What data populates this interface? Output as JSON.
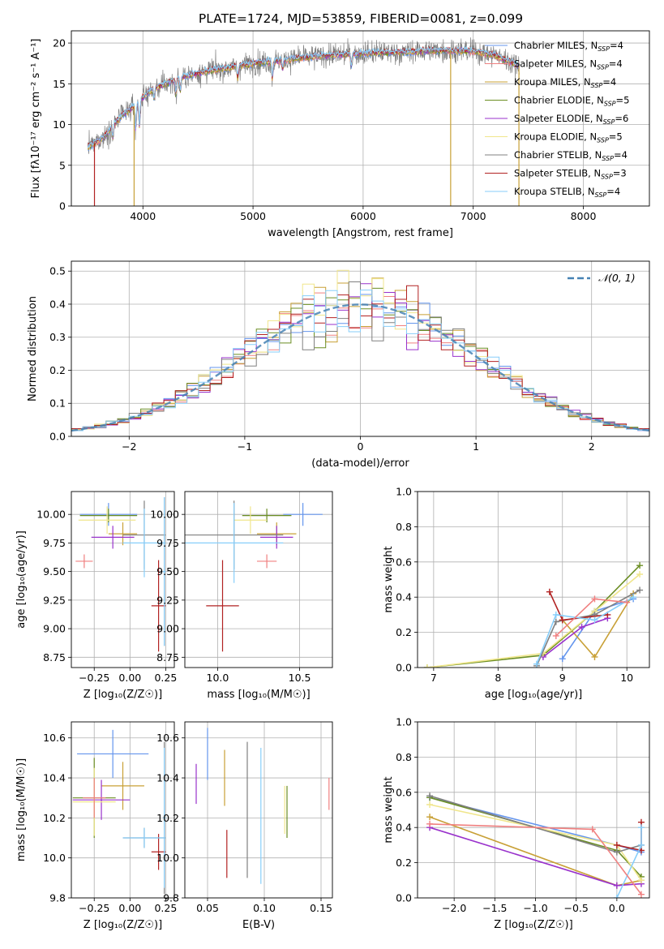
{
  "title": "PLATE=1724, MJD=53859, FIBERID=0081, z=0.099",
  "colors": {
    "chabrier_miles": "#6495ed",
    "salpeter_miles": "#f08080",
    "kroupa_miles": "#c8a036",
    "chabrier_elodie": "#6b8e23",
    "salpeter_elodie": "#9932cc",
    "kroupa_elodie": "#f0e68c",
    "chabrier_stelib": "#808080",
    "salpeter_stelib": "#b22222",
    "kroupa_stelib": "#87cefa",
    "data": "#808080",
    "normal": "#4682b4"
  },
  "chart_data": [
    {
      "id": "spectrum",
      "type": "line",
      "xlabel": "wavelength [Angstrom, rest frame]",
      "ylabel": "Flux [fλ10⁻¹⁷ erg cm⁻² s⁻¹ A⁻¹]",
      "xlim": [
        3350,
        8600
      ],
      "ylim": [
        0,
        21.5
      ],
      "xticks": [
        4000,
        5000,
        6000,
        7000,
        8000
      ],
      "yticks": [
        0,
        5,
        10,
        15,
        20
      ],
      "legend": [
        {
          "label": "Chabrier MILES, N",
          "sub": "SSP",
          "val": "=4",
          "color": "chabrier_miles"
        },
        {
          "label": "Salpeter MILES, N",
          "sub": "SSP",
          "val": "=4",
          "color": "salpeter_miles"
        },
        {
          "label": "Kroupa MILES, N",
          "sub": "SSP",
          "val": "=4",
          "color": "kroupa_miles"
        },
        {
          "label": "Chabrier ELODIE, N",
          "sub": "SSP",
          "val": "=5",
          "color": "chabrier_elodie"
        },
        {
          "label": "Salpeter ELODIE, N",
          "sub": "SSP",
          "val": "=6",
          "color": "salpeter_elodie"
        },
        {
          "label": "Kroupa ELODIE, N",
          "sub": "SSP",
          "val": "=5",
          "color": "kroupa_elodie"
        },
        {
          "label": "Chabrier STELIB, N",
          "sub": "SSP",
          "val": "=4",
          "color": "chabrier_stelib"
        },
        {
          "label": "Salpeter STELIB, N",
          "sub": "SSP",
          "val": "=3",
          "color": "salpeter_stelib"
        },
        {
          "label": "Kroupa STELIB, N",
          "sub": "SSP",
          "val": "=4",
          "color": "kroupa_stelib"
        }
      ],
      "continuum": {
        "x": [
          3500,
          3650,
          3800,
          3950,
          4050,
          4200,
          4400,
          4600,
          4800,
          5000,
          5200,
          5500,
          5800,
          6100,
          6400,
          6700,
          7000,
          7200,
          7400
        ],
        "y": [
          7.2,
          8.5,
          11.0,
          12.6,
          14.0,
          15.0,
          16.0,
          16.6,
          17.0,
          17.5,
          17.8,
          18.3,
          18.6,
          18.8,
          18.9,
          19.1,
          19.0,
          18.5,
          17.3
        ]
      },
      "drops": [
        {
          "x": 3560,
          "color": "salpeter_stelib"
        },
        {
          "x": 3920,
          "color": "kroupa_miles"
        },
        {
          "x": 6795,
          "color": "kroupa_miles"
        },
        {
          "x": 7415,
          "color": "kroupa_miles"
        }
      ]
    },
    {
      "id": "residuals",
      "type": "histogram",
      "xlabel": "(data-model)/error",
      "ylabel": "Normed distribution",
      "xlim": [
        -2.5,
        2.5
      ],
      "ylim": [
        0,
        0.53
      ],
      "xticks": [
        -2,
        -1,
        0,
        1,
        2
      ],
      "yticks": [
        0.0,
        0.1,
        0.2,
        0.3,
        0.4,
        0.5
      ],
      "legend": "𝒩(0, 1)",
      "bin_width": 0.1,
      "bin_start": -2.6
    },
    {
      "id": "age_vs_Z",
      "type": "errorbar",
      "xlabel": "Z [log₁₀(Z/Z☉)]",
      "ylabel": "age  [log₁₀(age/yr)]",
      "xlim": [
        -0.41,
        0.31
      ],
      "ylim": [
        8.66,
        10.2
      ],
      "xticks": [
        -0.25,
        0.0,
        0.25
      ],
      "yticks": [
        8.75,
        9.0,
        9.25,
        9.5,
        9.75,
        10.0
      ],
      "points": [
        {
          "color": "chabrier_miles",
          "x": -0.15,
          "xerr": 0.2,
          "y": 10.0,
          "yerr": 0.1
        },
        {
          "color": "kroupa_miles",
          "x": -0.05,
          "xerr": 0.1,
          "y": 9.83,
          "yerr": 0.1
        },
        {
          "color": "chabrier_elodie",
          "x": -0.15,
          "xerr": 0.2,
          "y": 9.99,
          "yerr": 0.06
        },
        {
          "color": "salpeter_elodie",
          "x": -0.12,
          "xerr": 0.15,
          "y": 9.8,
          "yerr": 0.1
        },
        {
          "color": "kroupa_elodie",
          "x": -0.16,
          "xerr": 0.2,
          "y": 9.95,
          "yerr": 0.12
        },
        {
          "color": "chabrier_stelib",
          "x": 0.1,
          "xerr": 0.15,
          "y": 9.82,
          "yerr": 0.3
        },
        {
          "color": "salpeter_stelib",
          "x": 0.2,
          "xerr": 0.05,
          "y": 9.2,
          "yerr": 0.4
        },
        {
          "color": "kroupa_stelib",
          "x": 0.1,
          "xerr": 0.15,
          "y": 9.75,
          "yerr": 0.3
        },
        {
          "color": "salpeter_miles",
          "x": -0.32,
          "xerr": 0.06,
          "y": 9.59,
          "yerr": 0.06
        },
        {
          "color": "chabrier_stelib",
          "x": 0.24,
          "xerr": 0.01,
          "y": 9.5,
          "yerr": 0.65
        },
        {
          "color": "kroupa_stelib",
          "x": 0.24,
          "xerr": 0.01,
          "y": 9.5,
          "yerr": 0.65
        }
      ]
    },
    {
      "id": "age_vs_mass",
      "type": "errorbar",
      "xlabel": "mass [log₁₀(M/M☉)]",
      "ylabel": "",
      "xlim": [
        9.8,
        10.7
      ],
      "ylim": [
        8.66,
        10.2
      ],
      "xticks": [
        10.0,
        10.5
      ],
      "yticks": [
        8.75,
        9.0,
        9.25,
        9.5,
        9.75,
        10.0
      ],
      "points": [
        {
          "color": "chabrier_miles",
          "x": 10.52,
          "xerr": 0.12,
          "y": 10.0,
          "yerr": 0.1
        },
        {
          "color": "kroupa_miles",
          "x": 10.36,
          "xerr": 0.12,
          "y": 9.83,
          "yerr": 0.1
        },
        {
          "color": "chabrier_elodie",
          "x": 10.3,
          "xerr": 0.15,
          "y": 9.99,
          "yerr": 0.06
        },
        {
          "color": "salpeter_elodie",
          "x": 10.36,
          "xerr": 0.1,
          "y": 9.8,
          "yerr": 0.1
        },
        {
          "color": "kroupa_elodie",
          "x": 10.2,
          "xerr": 0.1,
          "y": 9.95,
          "yerr": 0.12
        },
        {
          "color": "chabrier_stelib",
          "x": 10.1,
          "xerr": 0.3,
          "y": 9.82,
          "yerr": 0.3
        },
        {
          "color": "salpeter_stelib",
          "x": 10.03,
          "xerr": 0.1,
          "y": 9.2,
          "yerr": 0.4
        },
        {
          "color": "kroupa_stelib",
          "x": 10.1,
          "xerr": 0.3,
          "y": 9.75,
          "yerr": 0.35
        },
        {
          "color": "salpeter_miles",
          "x": 10.3,
          "xerr": 0.06,
          "y": 9.59,
          "yerr": 0.06
        }
      ]
    },
    {
      "id": "mass_vs_Z",
      "type": "errorbar",
      "xlabel": "Z [log₁₀(Z/Z☉)]",
      "ylabel": "mass [log₁₀(M/M☉)]",
      "xlim": [
        -0.41,
        0.31
      ],
      "ylim": [
        9.8,
        10.68
      ],
      "xticks": [
        -0.25,
        0.0,
        0.25
      ],
      "yticks": [
        9.8,
        10.0,
        10.2,
        10.4,
        10.6
      ],
      "points": [
        {
          "color": "chabrier_miles",
          "x": -0.12,
          "xerr": 0.25,
          "y": 10.52,
          "yerr": 0.12
        },
        {
          "color": "kroupa_miles",
          "x": -0.05,
          "xerr": 0.15,
          "y": 10.36,
          "yerr": 0.12
        },
        {
          "color": "chabrier_elodie",
          "x": -0.25,
          "xerr": 0.15,
          "y": 10.3,
          "yerr": 0.2
        },
        {
          "color": "salpeter_elodie",
          "x": -0.2,
          "xerr": 0.2,
          "y": 10.29,
          "yerr": 0.1
        },
        {
          "color": "kroupa_elodie",
          "x": -0.25,
          "xerr": 0.15,
          "y": 10.28,
          "yerr": 0.17
        },
        {
          "color": "chabrier_stelib",
          "x": 0.1,
          "xerr": 0.15,
          "y": 10.1,
          "yerr": 0.05
        },
        {
          "color": "salpeter_stelib",
          "x": 0.2,
          "xerr": 0.05,
          "y": 10.03,
          "yerr": 0.09
        },
        {
          "color": "kroupa_stelib",
          "x": 0.1,
          "xerr": 0.15,
          "y": 10.1,
          "yerr": 0.05
        },
        {
          "color": "salpeter_miles",
          "x": -0.25,
          "xerr": 0.08,
          "y": 10.3,
          "yerr": 0.1
        },
        {
          "color": "chabrier_stelib",
          "x": 0.24,
          "xerr": 0.01,
          "y": 10.2,
          "yerr": 0.38
        },
        {
          "color": "kroupa_stelib",
          "x": 0.24,
          "xerr": 0.01,
          "y": 10.2,
          "yerr": 0.35
        }
      ]
    },
    {
      "id": "mass_vs_ebv",
      "type": "errorbar",
      "xlabel": "E(B-V)",
      "ylabel": "",
      "xlim": [
        0.03,
        0.16
      ],
      "ylim": [
        9.8,
        10.68
      ],
      "xticks": [
        0.05,
        0.1,
        0.15
      ],
      "yticks": [
        9.8,
        10.0,
        10.2,
        10.4,
        10.6
      ],
      "points": [
        {
          "color": "chabrier_miles",
          "x": 0.05,
          "y": 10.52,
          "yerr": 0.13
        },
        {
          "color": "kroupa_miles",
          "x": 0.065,
          "y": 10.4,
          "yerr": 0.14
        },
        {
          "color": "chabrier_elodie",
          "x": 0.12,
          "y": 10.23,
          "yerr": 0.13
        },
        {
          "color": "salpeter_elodie",
          "x": 0.04,
          "y": 10.37,
          "yerr": 0.1
        },
        {
          "color": "kroupa_elodie",
          "x": 0.118,
          "y": 10.24,
          "yerr": 0.12
        },
        {
          "color": "chabrier_stelib",
          "x": 0.085,
          "y": 10.24,
          "yerr": 0.34
        },
        {
          "color": "salpeter_stelib",
          "x": 0.067,
          "y": 10.02,
          "yerr": 0.12
        },
        {
          "color": "kroupa_stelib",
          "x": 0.097,
          "y": 10.21,
          "yerr": 0.34
        },
        {
          "color": "salpeter_miles",
          "x": 0.157,
          "y": 10.32,
          "yerr": 0.08
        }
      ]
    },
    {
      "id": "weight_vs_age",
      "type": "line",
      "xlabel": "age  [log₁₀(age/yr)]",
      "ylabel": "mass weight",
      "xlim": [
        6.75,
        10.35
      ],
      "ylim": [
        0,
        1.0
      ],
      "xticks": [
        7,
        8,
        9,
        10
      ],
      "yticks": [
        0.0,
        0.2,
        0.4,
        0.6,
        0.8,
        1.0
      ],
      "series": [
        {
          "color": "chabrier_miles",
          "x": [
            9.0,
            9.5,
            10.1
          ],
          "y": [
            0.05,
            0.32,
            0.39
          ]
        },
        {
          "color": "kroupa_miles",
          "x": [
            9.0,
            9.5,
            10.1
          ],
          "y": [
            0.27,
            0.06,
            0.42
          ]
        },
        {
          "color": "chabrier_elodie",
          "x": [
            6.9,
            8.7,
            9.5,
            10.2
          ],
          "y": [
            0.0,
            0.07,
            0.32,
            0.58
          ]
        },
        {
          "color": "salpeter_elodie",
          "x": [
            8.7,
            9.3,
            9.7
          ],
          "y": [
            0.06,
            0.23,
            0.28
          ]
        },
        {
          "color": "kroupa_elodie",
          "x": [
            6.9,
            8.7,
            9.5,
            10.2
          ],
          "y": [
            0.0,
            0.08,
            0.32,
            0.53
          ]
        },
        {
          "color": "chabrier_stelib",
          "x": [
            8.6,
            8.9,
            9.5,
            10.2
          ],
          "y": [
            0.01,
            0.26,
            0.3,
            0.44
          ]
        },
        {
          "color": "salpeter_stelib",
          "x": [
            8.8,
            9.0,
            9.7
          ],
          "y": [
            0.43,
            0.27,
            0.3
          ]
        },
        {
          "color": "kroupa_stelib",
          "x": [
            8.6,
            8.9,
            9.5,
            10.1
          ],
          "y": [
            0.02,
            0.3,
            0.27,
            0.4
          ]
        },
        {
          "color": "salpeter_miles",
          "x": [
            8.9,
            9.5,
            10.0
          ],
          "y": [
            0.18,
            0.39,
            0.37
          ]
        }
      ]
    },
    {
      "id": "weight_vs_Z",
      "type": "line",
      "xlabel": "Z [log₁₀(Z/Z☉)]",
      "ylabel": "mass weight",
      "xlim": [
        -2.45,
        0.4
      ],
      "ylim": [
        0,
        1.0
      ],
      "xticks": [
        -2.0,
        -1.5,
        -1.0,
        -0.5,
        0.0
      ],
      "yticks": [
        0.0,
        0.2,
        0.4,
        0.6,
        0.8,
        1.0
      ],
      "series": [
        {
          "color": "chabrier_miles",
          "x": [
            -2.3,
            0.0,
            0.3
          ],
          "y": [
            0.57,
            0.3,
            0.26
          ]
        },
        {
          "color": "kroupa_miles",
          "x": [
            -2.3,
            0.0,
            0.3
          ],
          "y": [
            0.46,
            0.07,
            0.1
          ]
        },
        {
          "color": "chabrier_elodie",
          "x": [
            -2.3,
            0.0,
            0.3
          ],
          "y": [
            0.57,
            0.27,
            0.12
          ]
        },
        {
          "color": "salpeter_elodie",
          "x": [
            -2.3,
            0.0,
            0.3
          ],
          "y": [
            0.4,
            0.07,
            0.08
          ]
        },
        {
          "color": "kroupa_elodie",
          "x": [
            -2.3,
            0.0,
            0.3
          ],
          "y": [
            0.53,
            0.3,
            0.1
          ]
        },
        {
          "color": "chabrier_stelib",
          "x": [
            -2.3,
            0.0,
            0.3
          ],
          "y": [
            0.58,
            0.26,
            0.3
          ]
        },
        {
          "color": "salpeter_stelib",
          "x": [
            0.0,
            0.3,
            0.3
          ],
          "y": [
            0.3,
            0.27,
            0.43
          ]
        },
        {
          "color": "kroupa_stelib",
          "x": [
            0.0,
            0.3,
            0.3
          ],
          "y": [
            0.0,
            0.3,
            0.4
          ]
        },
        {
          "color": "salpeter_miles",
          "x": [
            -2.3,
            -0.3,
            0.3
          ],
          "y": [
            0.42,
            0.39,
            0.02
          ]
        }
      ]
    }
  ]
}
